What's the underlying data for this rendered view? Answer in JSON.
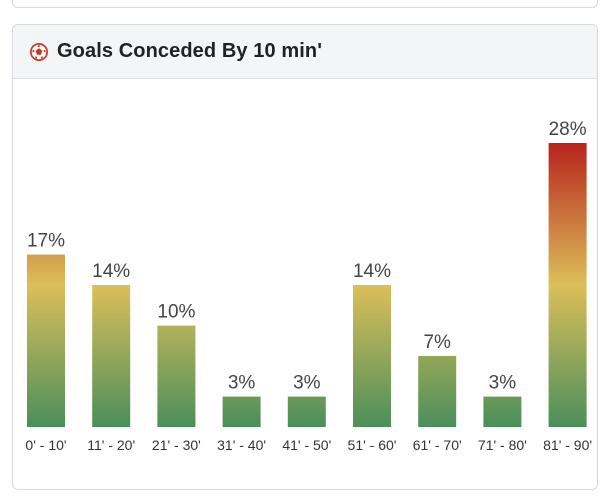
{
  "card": {
    "title": "Goals Conceded By 10 min'",
    "icon": "soccer-ball-icon"
  },
  "colors": {
    "bar_top_high": "#b8231c",
    "bar_mid": "#dcbf5a",
    "bar_bottom": "#4a8f5a",
    "label_text": "#444444"
  },
  "chart_data": {
    "type": "bar",
    "categories": [
      "0' - 10'",
      "11' - 20'",
      "21' - 30'",
      "31' - 40'",
      "41' - 50'",
      "51' - 60'",
      "61' - 70'",
      "71' - 80'",
      "81' - 90'"
    ],
    "values": [
      17,
      14,
      10,
      3,
      3,
      14,
      7,
      3,
      28
    ],
    "value_labels": [
      "17%",
      "14%",
      "10%",
      "3%",
      "3%",
      "14%",
      "7%",
      "3%",
      "28%"
    ],
    "unit": "%",
    "ylim": [
      0,
      28
    ],
    "grid": false,
    "legend": "none"
  }
}
